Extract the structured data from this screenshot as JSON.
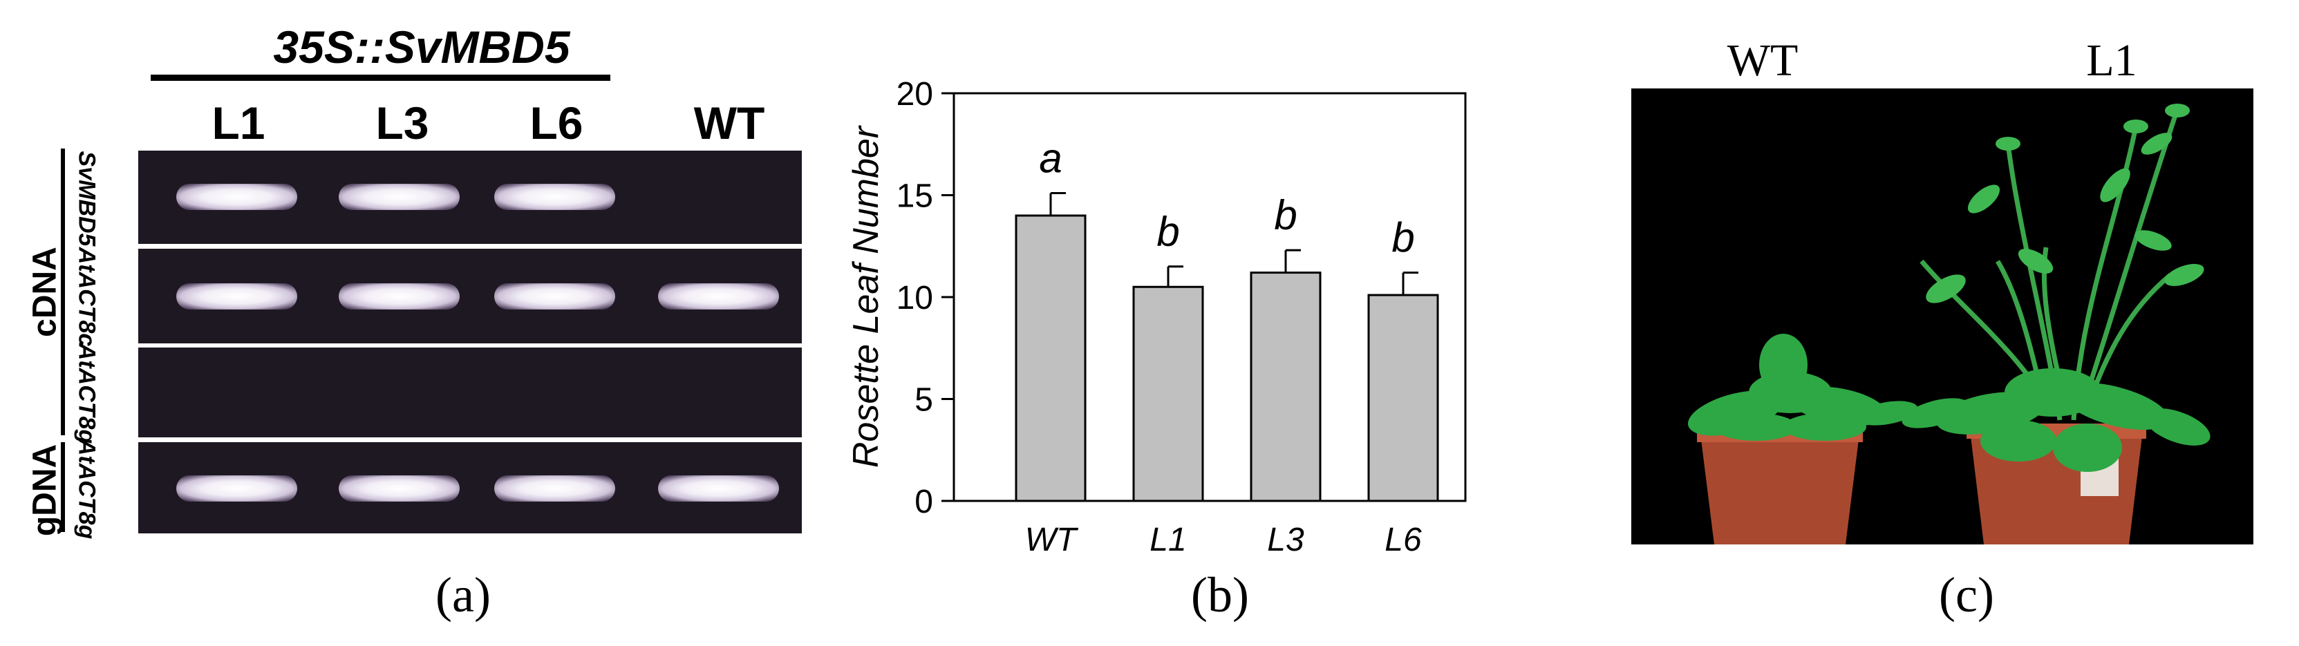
{
  "panel_a": {
    "title": "35S::SvMBD5",
    "lanes": [
      "L1",
      "L3",
      "L6",
      "WT"
    ],
    "group_labels": [
      "cDNA",
      "gDNA"
    ],
    "genes": [
      "SvMBD5",
      "AtACT8c",
      "AtACT8g",
      "AtACT8g"
    ],
    "caption": "(a)"
  },
  "chart_data": {
    "type": "bar",
    "title": "",
    "xlabel": "",
    "ylabel": "Rosette Leaf Number",
    "categories": [
      "WT",
      "L1",
      "L3",
      "L6"
    ],
    "values": [
      14.0,
      10.5,
      11.2,
      10.1
    ],
    "errors": [
      1.1,
      1.0,
      1.1,
      1.1
    ],
    "significance": [
      "a",
      "b",
      "b",
      "b"
    ],
    "ylim": [
      0,
      20
    ],
    "yticks": [
      0,
      5,
      10,
      15,
      20
    ],
    "bar_color": "#c0c0c0",
    "caption": "(b)"
  },
  "panel_c": {
    "labels": [
      "WT",
      "L1"
    ],
    "caption": "(c)"
  }
}
